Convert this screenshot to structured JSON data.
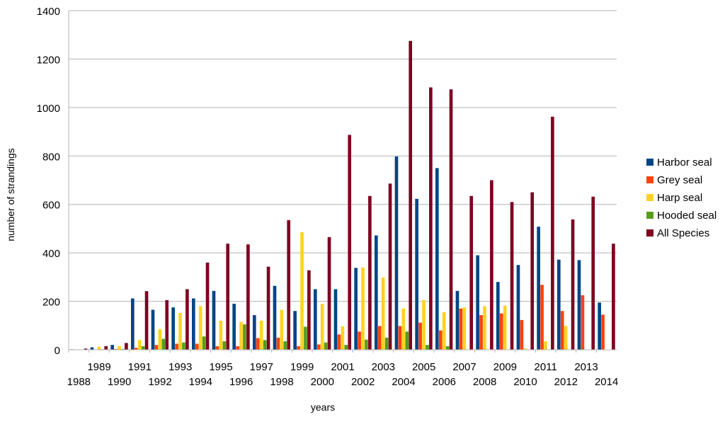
{
  "chart_data": {
    "type": "bar",
    "title": "",
    "xlabel": "years",
    "ylabel": "number of strandings",
    "ylim": [
      0,
      1400
    ],
    "yticks": [
      0,
      200,
      400,
      600,
      800,
      1000,
      1200,
      1400
    ],
    "grid": true,
    "legend_position": "right",
    "categories": [
      "1988",
      "1989",
      "1990",
      "1991",
      "1992",
      "1993",
      "1994",
      "1995",
      "1996",
      "1997",
      "1998",
      "1999",
      "2000",
      "2001",
      "2002",
      "2003",
      "2004",
      "2005",
      "2006",
      "2007",
      "2008",
      "2009",
      "2010",
      "2011",
      "2012",
      "2013",
      "2014"
    ],
    "series": [
      {
        "name": "Harbor seal",
        "color": "#004586",
        "values": [
          2,
          10,
          20,
          212,
          165,
          175,
          212,
          243,
          190,
          143,
          264,
          160,
          250,
          250,
          338,
          472,
          798,
          623,
          750,
          243,
          390,
          280,
          350,
          508,
          372,
          370,
          195
        ]
      },
      {
        "name": "Grey seal",
        "color": "#ff420e",
        "values": [
          0,
          0,
          3,
          8,
          20,
          25,
          25,
          15,
          15,
          48,
          50,
          15,
          22,
          63,
          75,
          98,
          98,
          112,
          80,
          170,
          143,
          150,
          123,
          268,
          160,
          225,
          145
        ]
      },
      {
        "name": "Harp seal",
        "color": "#ffd320",
        "values": [
          1,
          12,
          15,
          40,
          85,
          152,
          180,
          120,
          115,
          120,
          165,
          485,
          190,
          97,
          340,
          298,
          170,
          205,
          155,
          175,
          180,
          182,
          5,
          35,
          98,
          0,
          0
        ]
      },
      {
        "name": "Hooded seal",
        "color": "#579d1c",
        "values": [
          0,
          2,
          3,
          15,
          45,
          30,
          55,
          35,
          105,
          40,
          35,
          95,
          30,
          20,
          42,
          50,
          75,
          20,
          15,
          0,
          0,
          0,
          0,
          0,
          0,
          0,
          0
        ]
      },
      {
        "name": "All Species",
        "color": "#7e0021",
        "values": [
          5,
          15,
          28,
          242,
          205,
          250,
          360,
          438,
          435,
          343,
          535,
          328,
          465,
          887,
          635,
          686,
          1275,
          1083,
          1075,
          635,
          700,
          610,
          650,
          962,
          538,
          632,
          438
        ]
      }
    ]
  }
}
